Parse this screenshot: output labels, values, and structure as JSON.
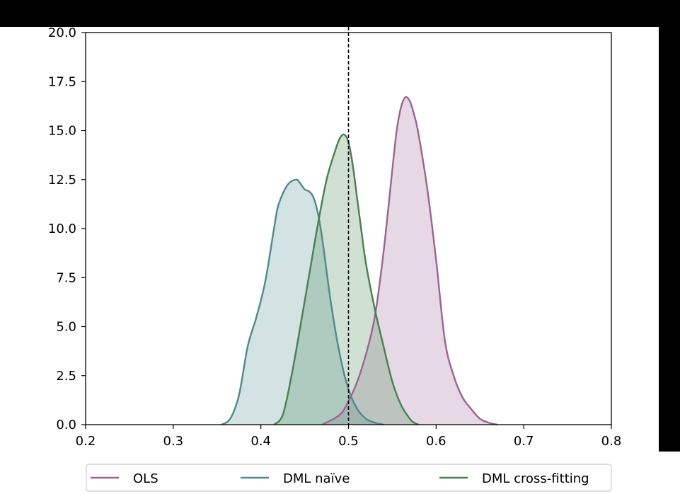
{
  "chart_data": {
    "type": "area",
    "xlim": [
      0.2,
      0.8
    ],
    "ylim": [
      0.0,
      20.0
    ],
    "x_ticks": [
      "0.2",
      "0.3",
      "0.4",
      "0.5",
      "0.6",
      "0.7",
      "0.8"
    ],
    "y_ticks": [
      "0.0",
      "2.5",
      "5.0",
      "7.5",
      "10.0",
      "12.5",
      "15.0",
      "17.5",
      "20.0"
    ],
    "x_tick_values": [
      0.2,
      0.3,
      0.4,
      0.5,
      0.6,
      0.7,
      0.8
    ],
    "y_tick_values": [
      0.0,
      2.5,
      5.0,
      7.5,
      10.0,
      12.5,
      15.0,
      17.5,
      20.0
    ],
    "reference_line": {
      "x": 0.5,
      "style": "dashed",
      "color": "#000000"
    },
    "grid": false,
    "legend_position": "bottom",
    "series": [
      {
        "name": "OLS",
        "color": "#9c6393",
        "fill": "#e3cfdd",
        "x": [
          0.47,
          0.49,
          0.5,
          0.51,
          0.52,
          0.53,
          0.54,
          0.55,
          0.555,
          0.56,
          0.565,
          0.57,
          0.575,
          0.58,
          0.59,
          0.6,
          0.61,
          0.62,
          0.63,
          0.64,
          0.65,
          0.66,
          0.67
        ],
        "y": [
          0.0,
          0.5,
          1.2,
          2.2,
          3.6,
          5.5,
          8.8,
          13.0,
          15.0,
          16.2,
          16.7,
          16.5,
          15.8,
          14.8,
          12.0,
          8.4,
          4.3,
          2.5,
          1.4,
          0.8,
          0.3,
          0.1,
          0.0
        ]
      },
      {
        "name": "DML naïve",
        "color": "#4f8a8f",
        "fill": "#d0e1e3",
        "x": [
          0.355,
          0.365,
          0.375,
          0.385,
          0.395,
          0.405,
          0.415,
          0.42,
          0.43,
          0.44,
          0.445,
          0.45,
          0.455,
          0.46,
          0.465,
          0.47,
          0.48,
          0.49,
          0.5,
          0.51,
          0.52,
          0.53,
          0.54
        ],
        "y": [
          0.0,
          0.3,
          1.5,
          4.0,
          5.5,
          7.3,
          10.0,
          11.2,
          12.2,
          12.5,
          12.3,
          12.0,
          11.9,
          11.6,
          10.8,
          9.5,
          6.2,
          3.6,
          1.8,
          0.8,
          0.3,
          0.1,
          0.0
        ]
      },
      {
        "name": "DML cross-fitting",
        "color": "#45824e",
        "fill": "#d0e4d2",
        "x": [
          0.415,
          0.425,
          0.435,
          0.445,
          0.455,
          0.465,
          0.475,
          0.485,
          0.49,
          0.495,
          0.5,
          0.505,
          0.51,
          0.515,
          0.52,
          0.53,
          0.54,
          0.55,
          0.56,
          0.57,
          0.575,
          0.58
        ],
        "y": [
          0.0,
          0.5,
          2.5,
          5.0,
          7.6,
          10.2,
          12.5,
          14.0,
          14.6,
          14.8,
          14.4,
          13.2,
          11.5,
          9.8,
          8.2,
          5.9,
          4.0,
          2.2,
          1.0,
          0.3,
          0.1,
          0.0
        ]
      }
    ]
  }
}
